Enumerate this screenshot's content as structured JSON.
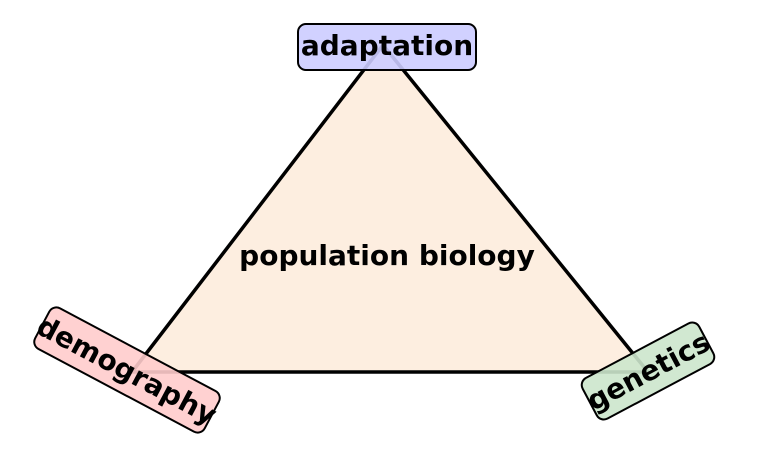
{
  "diagram": {
    "center_label": "population biology",
    "triangle_fill": "#fdeee0",
    "triangle_stroke": "#000000",
    "nodes": {
      "top": {
        "label": "adaptation",
        "fill": "#ccccff"
      },
      "left": {
        "label": "demography",
        "fill": "#ffcccc"
      },
      "right": {
        "label": "genetics",
        "fill": "#cce6cc"
      }
    }
  }
}
